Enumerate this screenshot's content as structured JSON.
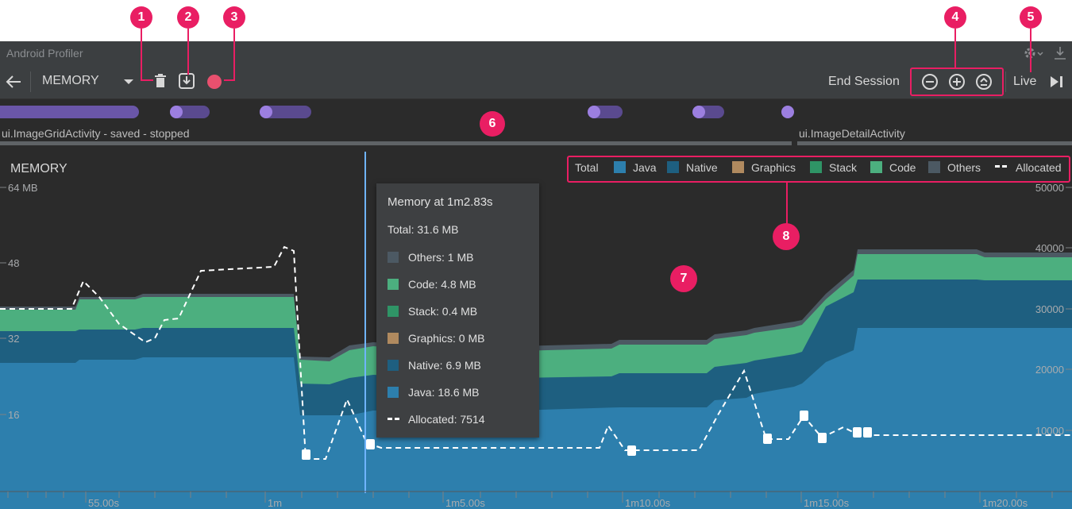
{
  "window": {
    "title": "Android Profiler"
  },
  "toolbar": {
    "profiler": "MEMORY",
    "end_session": "End Session",
    "live": "Live"
  },
  "sessions": {
    "activity_1": "ui.ImageGridActivity - saved - stopped",
    "activity_2": "ui.ImageDetailActivity"
  },
  "chart": {
    "title": "MEMORY",
    "left_ticks": [
      "64 MB",
      "48",
      "32",
      "16"
    ],
    "right_ticks": [
      "50000",
      "40000",
      "30000",
      "20000",
      "10000"
    ],
    "time_ticks": [
      "55.00s",
      "1m",
      "1m5.00s",
      "1m10.00s",
      "1m15.00s",
      "1m20.00s"
    ]
  },
  "legend": {
    "total": "Total",
    "items": [
      {
        "label": "Java",
        "color": "#2d7fad"
      },
      {
        "label": "Native",
        "color": "#1e5f80"
      },
      {
        "label": "Graphics",
        "color": "#b08a5f"
      },
      {
        "label": "Stack",
        "color": "#2f9466"
      },
      {
        "label": "Code",
        "color": "#4caf7f"
      },
      {
        "label": "Others",
        "color": "#4c5963"
      }
    ],
    "allocated": "Allocated"
  },
  "tooltip": {
    "title": "Memory at 1m2.83s",
    "total": "Total: 31.6 MB",
    "rows": [
      {
        "label": "Others: 1 MB",
        "color": "#4c5963"
      },
      {
        "label": "Code: 4.8 MB",
        "color": "#4caf7f"
      },
      {
        "label": "Stack: 0.4 MB",
        "color": "#2f9466"
      },
      {
        "label": "Graphics: 0 MB",
        "color": "#b08a5f"
      },
      {
        "label": "Native: 6.9 MB",
        "color": "#1e5f80"
      },
      {
        "label": "Java: 18.6 MB",
        "color": "#2d7fad"
      }
    ],
    "allocated": "Allocated: 7514"
  },
  "callouts": [
    "1",
    "2",
    "3",
    "4",
    "5",
    "6",
    "7",
    "8"
  ],
  "colors": {
    "accent": "#e91e63",
    "record": "#e8506e",
    "event": "#9c7fe0",
    "cursor": "#6fb4ff"
  }
}
